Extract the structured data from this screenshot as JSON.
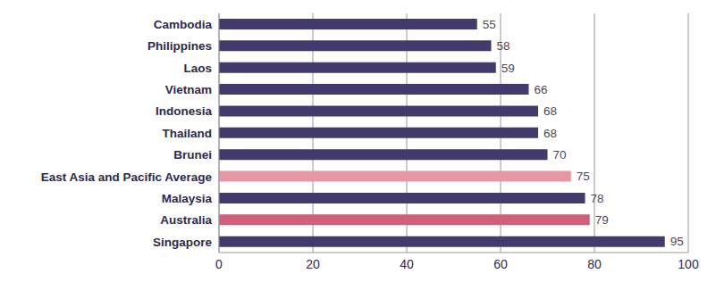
{
  "chart_data": {
    "type": "bar",
    "orientation": "horizontal",
    "categories": [
      "Cambodia",
      "Philippines",
      "Laos",
      "Vietnam",
      "Indonesia",
      "Thailand",
      "Brunei",
      "East Asia and Pacific Average",
      "Malaysia",
      "Australia",
      "Singapore"
    ],
    "values": [
      55,
      58,
      59,
      66,
      68,
      68,
      70,
      75,
      78,
      79,
      95
    ],
    "colors": [
      "#433b6b",
      "#433b6b",
      "#433b6b",
      "#433b6b",
      "#433b6b",
      "#433b6b",
      "#433b6b",
      "#e597a4",
      "#433b6b",
      "#d0607c",
      "#433b6b"
    ],
    "xlim": [
      0,
      100
    ],
    "xticks": [
      0,
      20,
      40,
      60,
      80,
      100
    ],
    "grid": true,
    "data_labels": true
  }
}
